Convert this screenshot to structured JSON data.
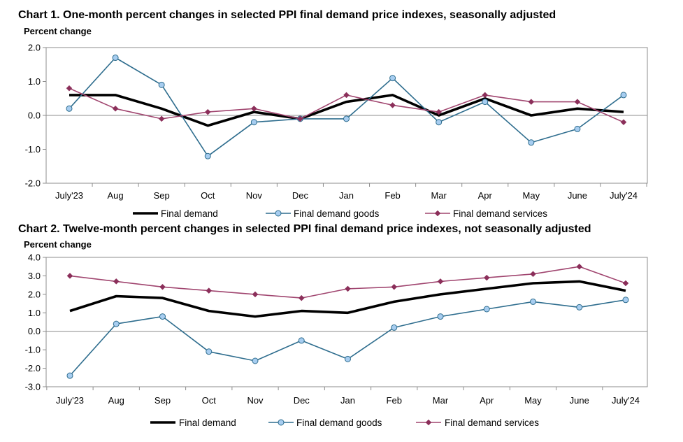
{
  "chart_data": [
    {
      "type": "line",
      "title": "Chart 1. One-month percent changes in selected PPI final demand price indexes, seasonally adjusted",
      "ylabel": "Percent change",
      "categories": [
        "July'23",
        "Aug",
        "Sep",
        "Oct",
        "Nov",
        "Dec",
        "Jan",
        "Feb",
        "Mar",
        "Apr",
        "May",
        "June",
        "July'24"
      ],
      "ylim": [
        -2.0,
        2.0
      ],
      "yticks": [
        "2.0",
        "1.0",
        "0.0",
        "-1.0",
        "-2.0"
      ],
      "ytick_values": [
        2.0,
        1.0,
        0.0,
        -1.0,
        -2.0
      ],
      "grid": false,
      "legend": "bottom",
      "series": [
        {
          "name": "Final demand",
          "values": [
            0.6,
            0.6,
            0.2,
            -0.3,
            0.1,
            -0.1,
            0.4,
            0.6,
            0.0,
            0.5,
            0.0,
            0.2,
            0.1
          ],
          "color": "#000000",
          "marker": "none"
        },
        {
          "name": "Final demand goods",
          "values": [
            0.2,
            1.7,
            0.9,
            -1.2,
            -0.2,
            -0.1,
            -0.1,
            1.1,
            -0.2,
            0.4,
            -0.8,
            -0.4,
            0.6
          ],
          "color": "#2e6d8e",
          "marker": "circle",
          "marker_fill": "#a7cdf0"
        },
        {
          "name": "Final demand services",
          "values": [
            0.8,
            0.2,
            -0.1,
            0.1,
            0.2,
            -0.1,
            0.6,
            0.3,
            0.1,
            0.6,
            0.4,
            0.4,
            -0.2
          ],
          "color": "#a0456f",
          "marker": "diamond",
          "marker_fill": "#8b2f5a"
        }
      ]
    },
    {
      "type": "line",
      "title": "Chart 2. Twelve-month percent changes in selected PPI final demand price indexes, not seasonally adjusted",
      "ylabel": "Percent change",
      "categories": [
        "July'23",
        "Aug",
        "Sep",
        "Oct",
        "Nov",
        "Dec",
        "Jan",
        "Feb",
        "Mar",
        "Apr",
        "May",
        "June",
        "July'24"
      ],
      "ylim": [
        -3.0,
        4.0
      ],
      "yticks": [
        "4.0",
        "3.0",
        "2.0",
        "1.0",
        "0.0",
        "-1.0",
        "-2.0",
        "-3.0"
      ],
      "ytick_values": [
        4.0,
        3.0,
        2.0,
        1.0,
        0.0,
        -1.0,
        -2.0,
        -3.0
      ],
      "grid": false,
      "legend": "bottom",
      "series": [
        {
          "name": "Final demand",
          "values": [
            1.1,
            1.9,
            1.8,
            1.1,
            0.8,
            1.1,
            1.0,
            1.6,
            2.0,
            2.3,
            2.6,
            2.7,
            2.2
          ],
          "color": "#000000",
          "marker": "none"
        },
        {
          "name": "Final demand goods",
          "values": [
            -2.4,
            0.4,
            0.8,
            -1.1,
            -1.6,
            -0.5,
            -1.5,
            0.2,
            0.8,
            1.2,
            1.6,
            1.3,
            1.7
          ],
          "color": "#2e6d8e",
          "marker": "circle",
          "marker_fill": "#a7cdf0"
        },
        {
          "name": "Final demand services",
          "values": [
            3.0,
            2.7,
            2.4,
            2.2,
            2.0,
            1.8,
            2.3,
            2.4,
            2.7,
            2.9,
            3.1,
            3.5,
            2.6
          ],
          "color": "#a0456f",
          "marker": "diamond",
          "marker_fill": "#8b2f5a"
        }
      ]
    }
  ]
}
